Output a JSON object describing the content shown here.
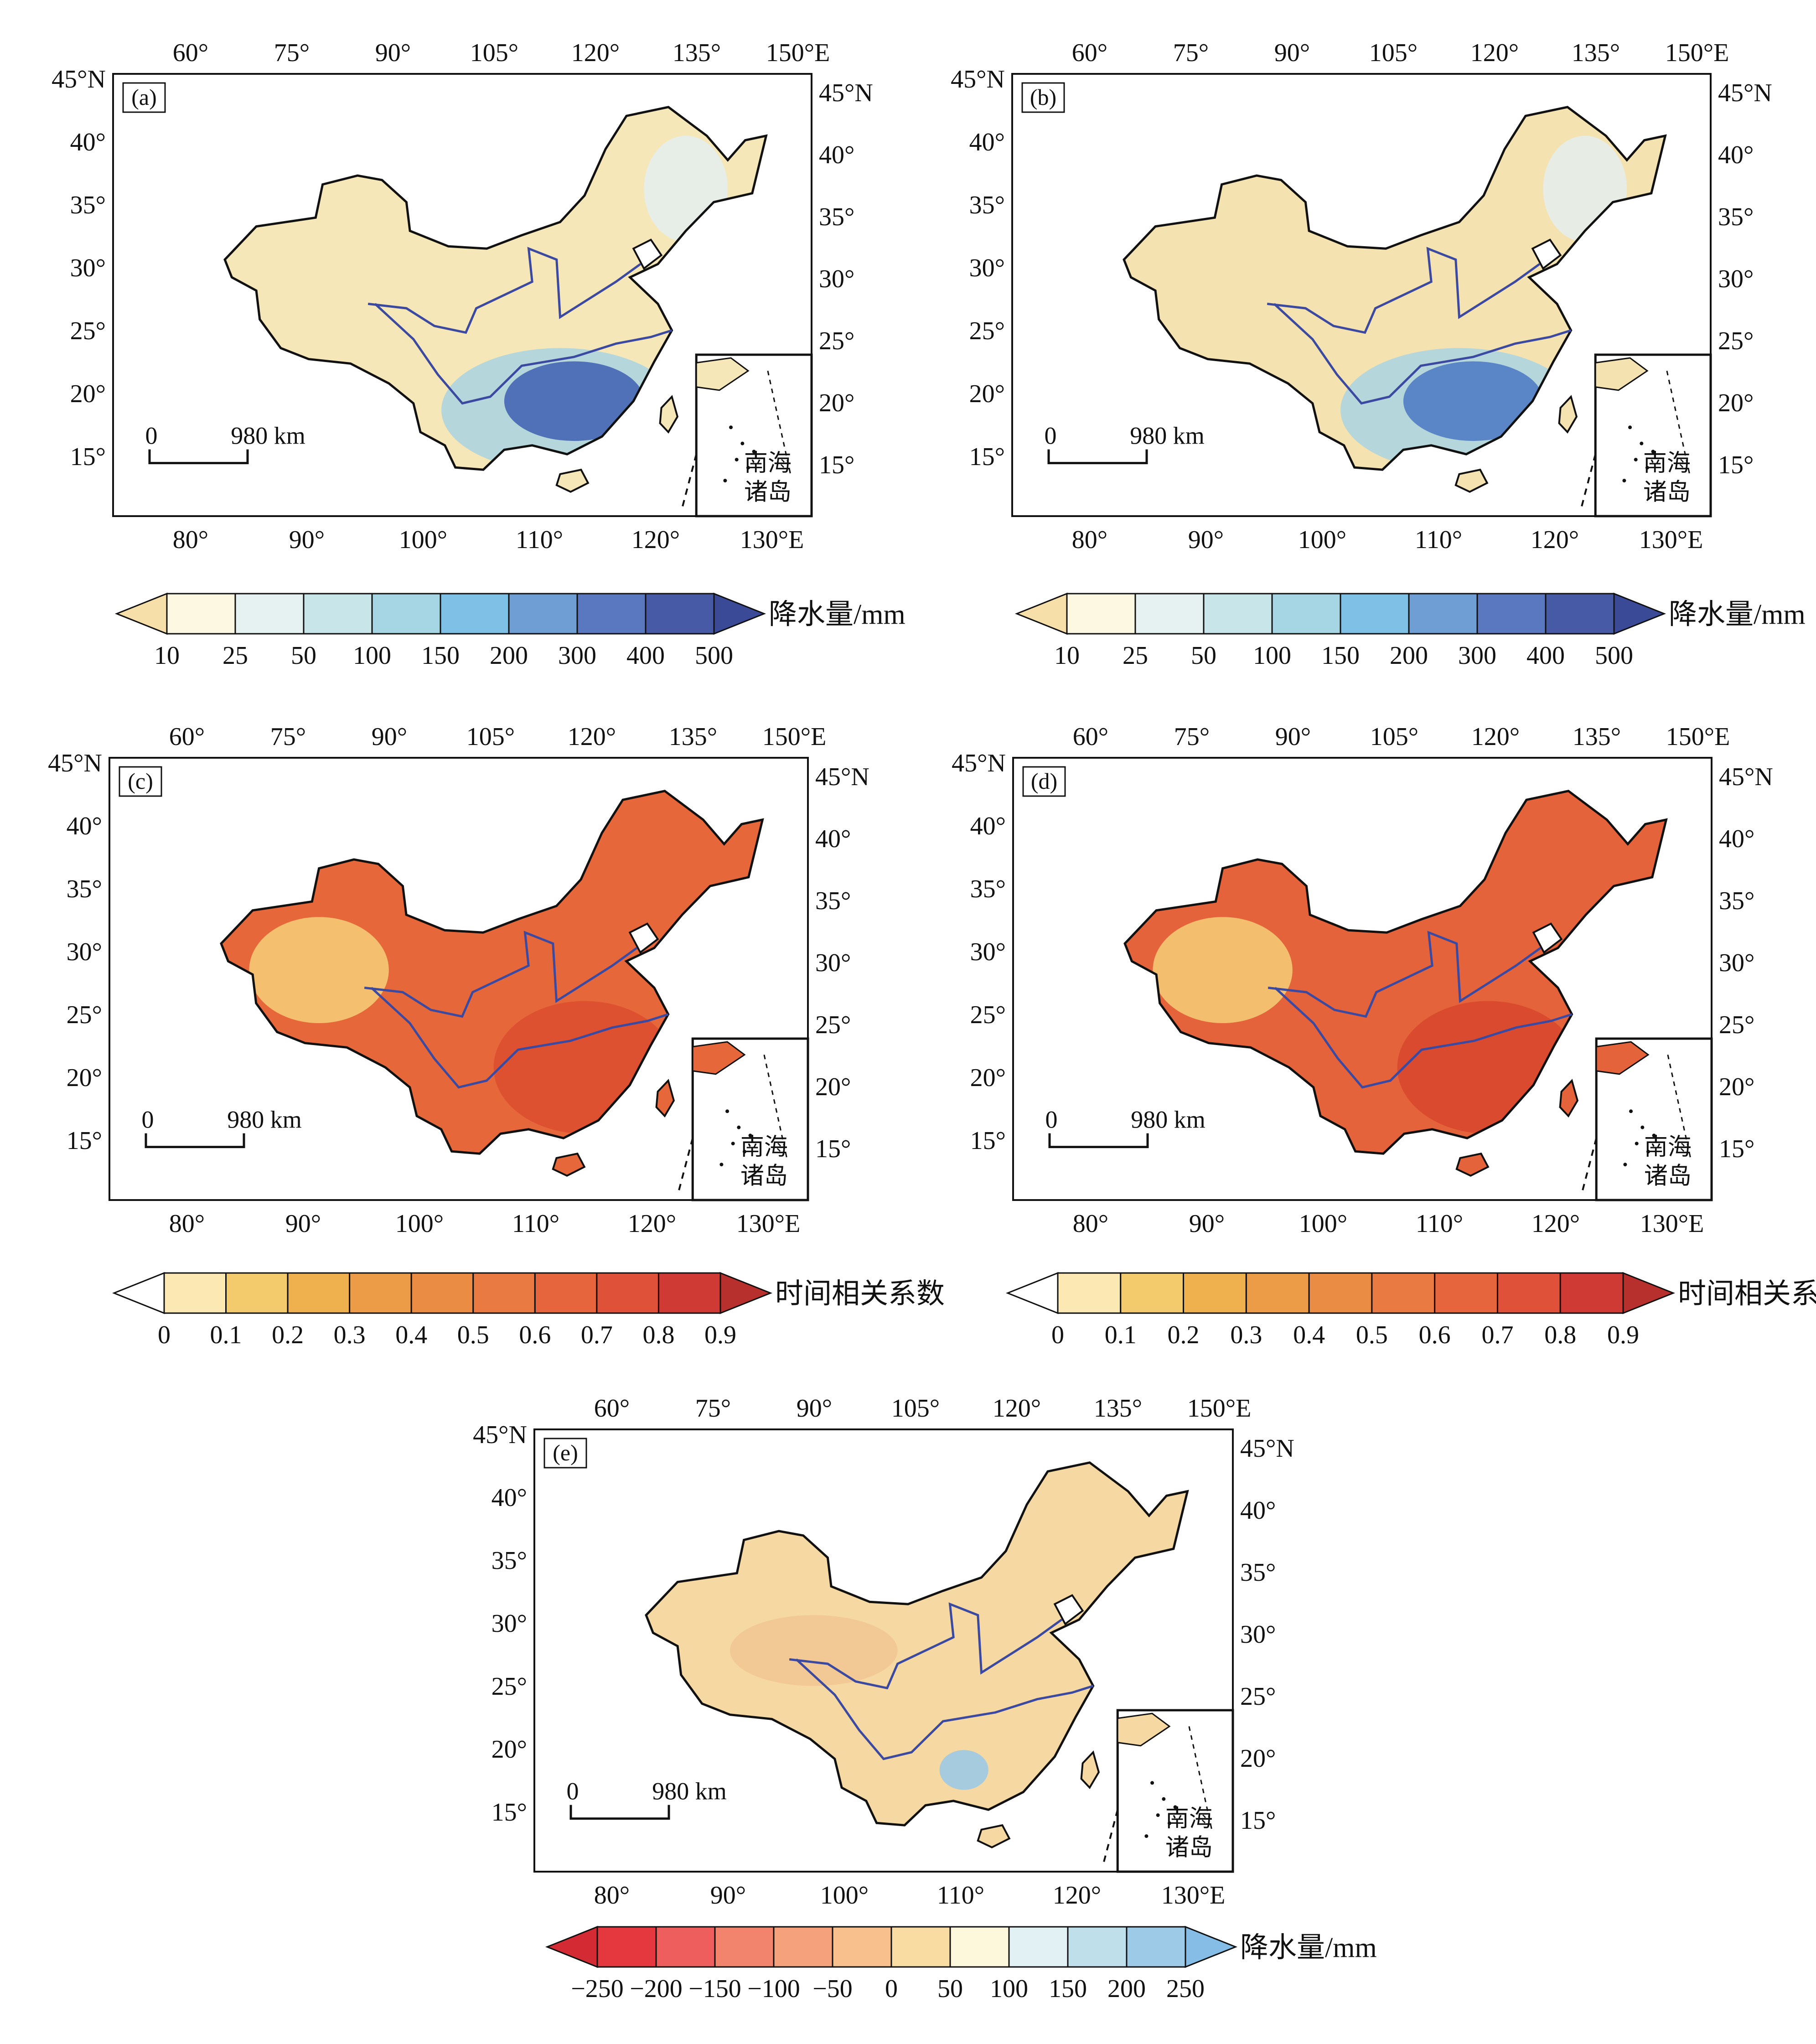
{
  "panels": [
    {
      "id": "a",
      "label": "(a)",
      "type": "precip",
      "land_color": "#f5e7b8",
      "blob_color": "#3e5fb0"
    },
    {
      "id": "b",
      "label": "(b)",
      "type": "precip",
      "land_color": "#f4e2b0",
      "blob_color": "#4a78c4"
    },
    {
      "id": "c",
      "label": "(c)",
      "type": "corr",
      "land_color": "#e6683a",
      "blob_color": "#d8462c"
    },
    {
      "id": "d",
      "label": "(d)",
      "type": "corr",
      "land_color": "#e4633a",
      "blob_color": "#d4402a"
    },
    {
      "id": "e",
      "label": "(e)",
      "type": "diff",
      "land_color": "#f6d9a2",
      "blob_color": "#9dc8e4"
    }
  ],
  "axes": {
    "top_ticks": [
      "60°",
      "75°",
      "90°",
      "105°",
      "120°",
      "135°",
      "150°E"
    ],
    "bottom_ticks": [
      "80°",
      "90°",
      "100°",
      "110°",
      "120°",
      "130°E"
    ],
    "left_ticks": [
      "45°N",
      "40°",
      "35°",
      "30°",
      "25°",
      "20°",
      "15°"
    ],
    "right_ticks": [
      "45°N",
      "40°",
      "35°",
      "30°",
      "25°",
      "20°",
      "15°"
    ]
  },
  "scale_bar": {
    "zero": "0",
    "distance": "980 km"
  },
  "inset_label": [
    "南海",
    "诸岛"
  ],
  "colorbars": {
    "precip": {
      "title": "降水量/mm",
      "ticks": [
        "10",
        "25",
        "50",
        "100",
        "150",
        "200",
        "300",
        "400",
        "500"
      ],
      "colors": [
        "#fdf8e1",
        "#e6f1f2",
        "#c8e6ea",
        "#a6d6e4",
        "#7fc0e6",
        "#6e9ed4",
        "#5a78c0",
        "#465aa6"
      ],
      "low_color": "#f6dfa8",
      "high_color": "#3a4a96"
    },
    "corr": {
      "title": "时间相关系数",
      "ticks": [
        "0",
        "0.1",
        "0.2",
        "0.3",
        "0.4",
        "0.5",
        "0.6",
        "0.7",
        "0.8",
        "0.9"
      ],
      "colors": [
        "#fbe8b2",
        "#f4cb6c",
        "#efb04e",
        "#ec9b46",
        "#eb8c44",
        "#e97b42",
        "#e6653c",
        "#e0513a",
        "#cf3a35"
      ],
      "low_color": "#ffffff",
      "high_color": "#b8302e"
    },
    "diff": {
      "title": "降水量/mm",
      "ticks": [
        "−250",
        "−200",
        "−150",
        "−100",
        "−50",
        "0",
        "50",
        "100",
        "150",
        "200",
        "250"
      ],
      "colors": [
        "#e5383e",
        "#ee5e5c",
        "#f2836c",
        "#f5a27c",
        "#f7c08c",
        "#f8dca2",
        "#fdf8dc",
        "#e2f1f4",
        "#bfe0ea",
        "#9dcae6"
      ],
      "low_color": "#d42a34",
      "high_color": "#86bde6"
    }
  }
}
